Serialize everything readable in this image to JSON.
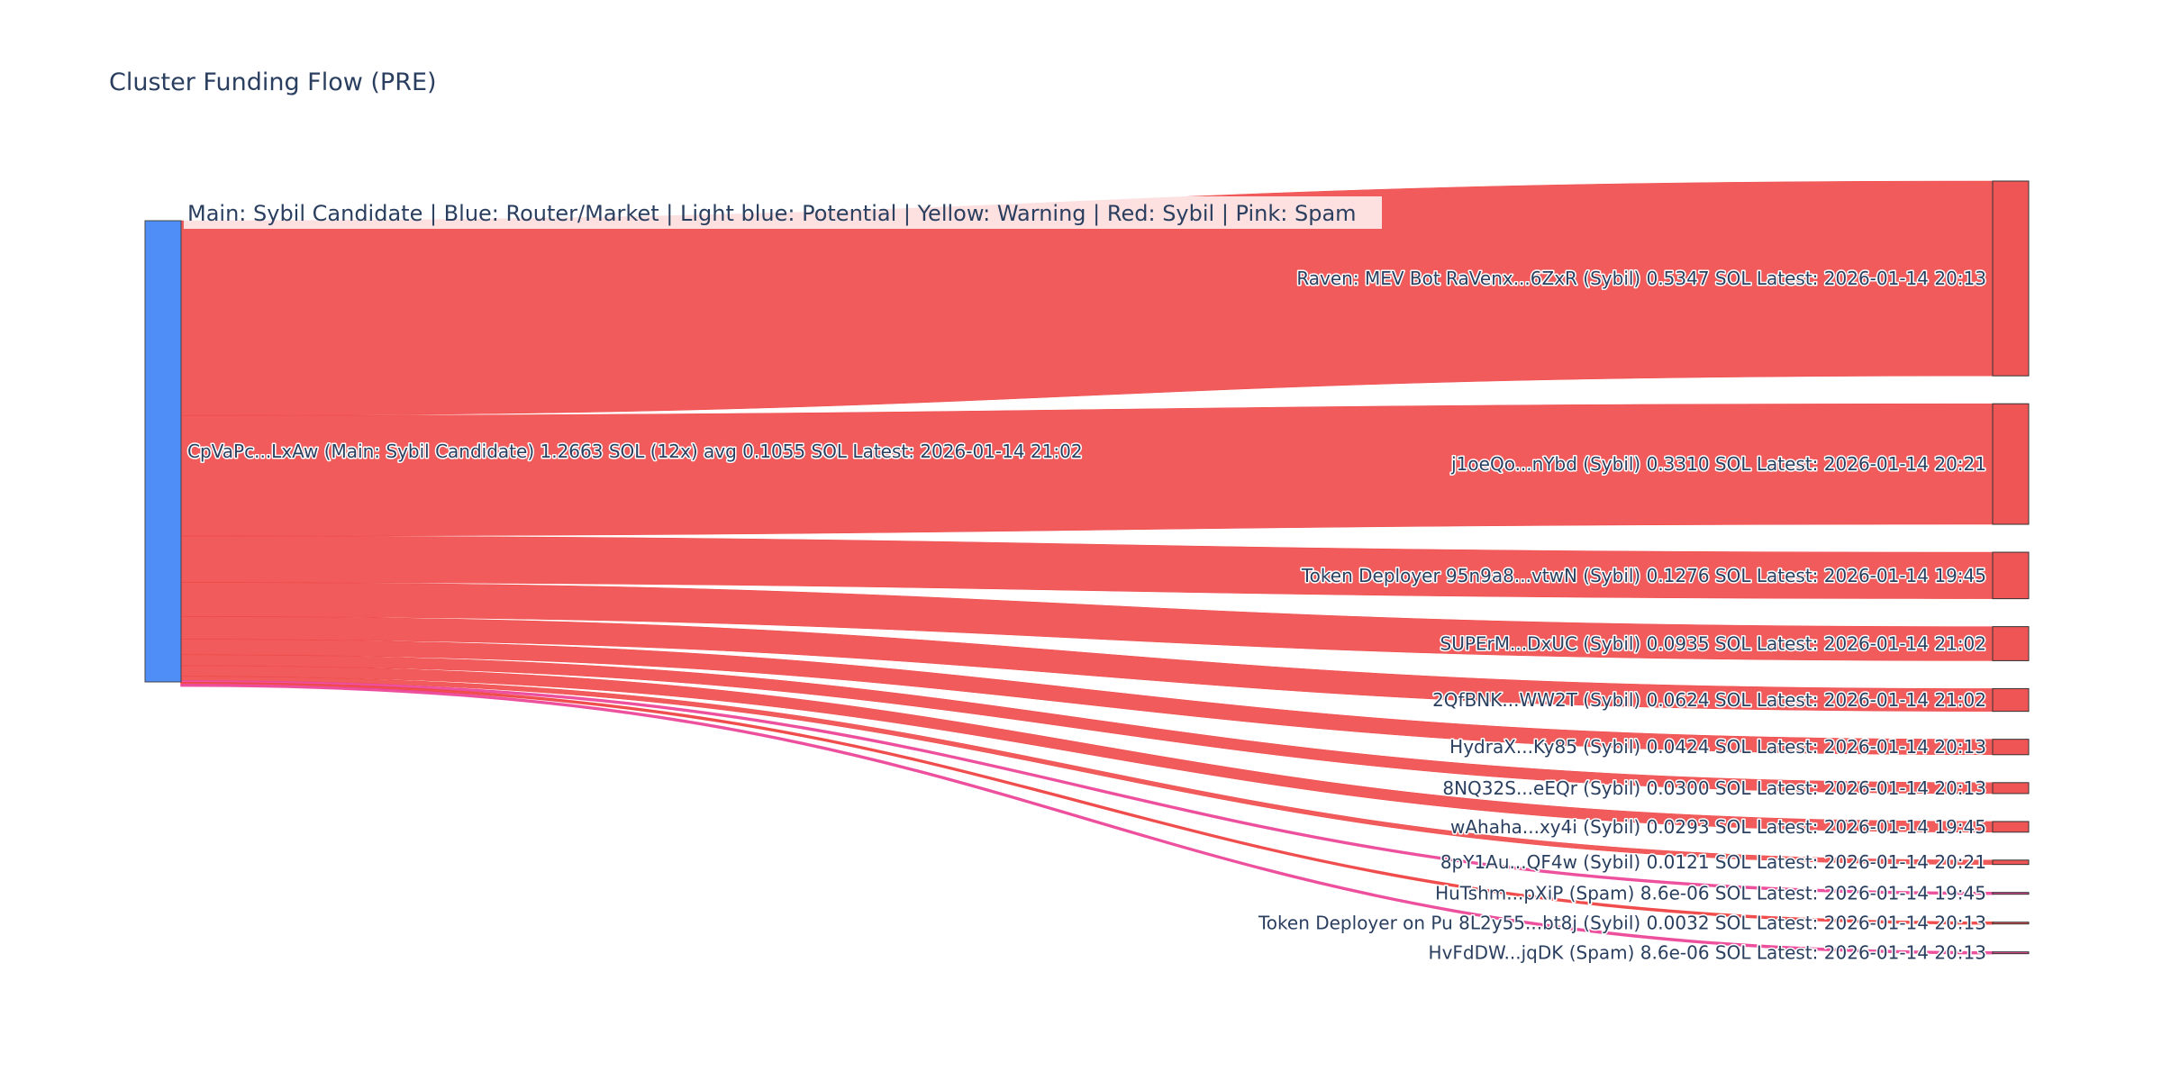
{
  "chart_data": {
    "type": "sankey",
    "title": "Cluster Funding Flow (PRE)",
    "annotation": "Main: Sybil Candidate  |  Blue: Router/Market | Light blue: Potential | Yellow: Warning | Red: Sybil | Pink: Spam",
    "source": {
      "label": "CpVaPc...LxAw (Main: Sybil Candidate) 1.2663 SOL (12x) avg 0.1055 SOL Latest: 2026-01-14 21:02",
      "value": 1.2663,
      "color": "#4f8ef7"
    },
    "colors": {
      "Sybil": "#ef4444",
      "Spam": "#ec4899",
      "node_fill_sybil": "#ef5555",
      "node_fill_spam": "#ec4899"
    },
    "targets": [
      {
        "label": "Raven: MEV Bot RaVenx...6ZxR (Sybil) 0.5347 SOL Latest: 2026-01-14 20:13",
        "value": 0.5347,
        "category": "Sybil"
      },
      {
        "label": "j1oeQo...nYbd (Sybil) 0.3310 SOL Latest: 2026-01-14 20:21",
        "value": 0.331,
        "category": "Sybil"
      },
      {
        "label": "Token Deployer 95n9a8...vtwN (Sybil) 0.1276 SOL Latest: 2026-01-14 19:45",
        "value": 0.1276,
        "category": "Sybil"
      },
      {
        "label": "SUPErM...DxUC (Sybil) 0.0935 SOL Latest: 2026-01-14 21:02",
        "value": 0.0935,
        "category": "Sybil"
      },
      {
        "label": "2QfBNK...WW2T (Sybil) 0.0624 SOL Latest: 2026-01-14 21:02",
        "value": 0.0624,
        "category": "Sybil"
      },
      {
        "label": "HydraX...Ky85 (Sybil) 0.0424 SOL Latest: 2026-01-14 20:13",
        "value": 0.0424,
        "category": "Sybil"
      },
      {
        "label": "8NQ32S...eEQr (Sybil) 0.0300 SOL Latest: 2026-01-14 20:13",
        "value": 0.03,
        "category": "Sybil"
      },
      {
        "label": "wAhaha...xy4i (Sybil) 0.0293 SOL Latest: 2026-01-14 19:45",
        "value": 0.0293,
        "category": "Sybil"
      },
      {
        "label": "8pY1Au...QF4w (Sybil) 0.0121 SOL Latest: 2026-01-14 20:21",
        "value": 0.0121,
        "category": "Sybil"
      },
      {
        "label": "HuTshm...pXiP (Spam) 8.6e-06 SOL Latest: 2026-01-14 19:45",
        "value": 8.6e-06,
        "category": "Spam"
      },
      {
        "label": "Token Deployer on Pu 8L2y55...bt8j (Sybil) 0.0032 SOL Latest: 2026-01-14 20:13",
        "value": 0.0032,
        "category": "Sybil"
      },
      {
        "label": "HvFdDW...jqDK (Spam) 8.6e-06 SOL Latest: 2026-01-14 20:13",
        "value": 8.6e-06,
        "category": "Spam"
      }
    ]
  }
}
